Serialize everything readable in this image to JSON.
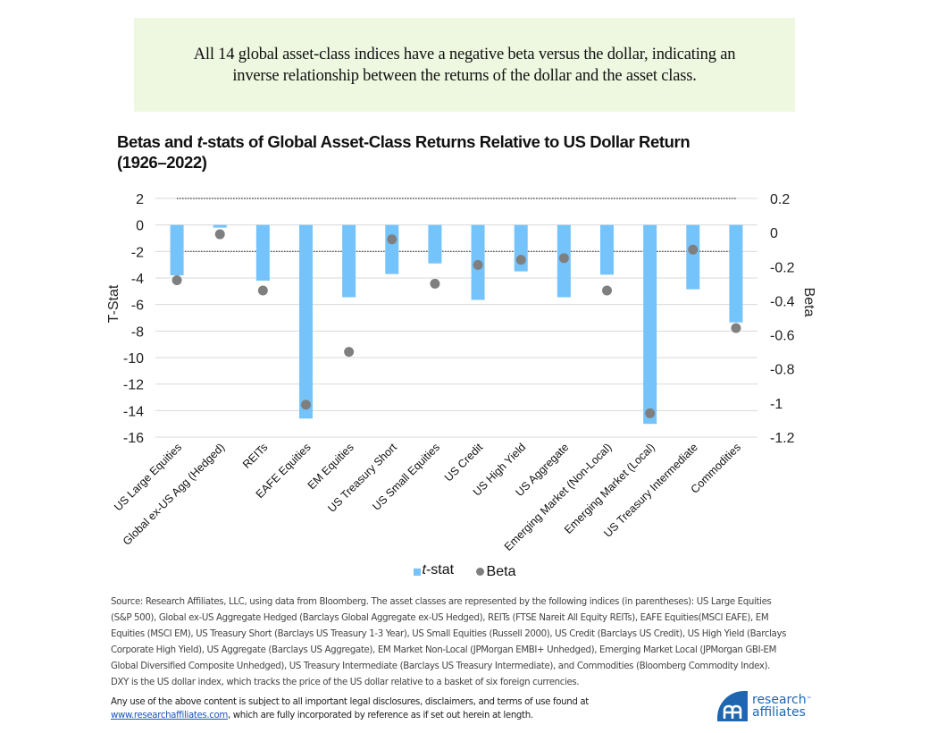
{
  "banner": {
    "line1": "All 14 global asset-class indices have a negative beta versus the dollar, indicating an",
    "line2": "inverse relationship between the returns of the dollar and the asset class."
  },
  "chart_data": {
    "type": "bar",
    "title_part1": "Betas and ",
    "title_italic": "t",
    "title_part2": "-stats of Global Asset-Class Returns Relative to US Dollar Return",
    "title_line2": "(1926–2022)",
    "categories": [
      "US Large Equities",
      "Global ex-US Agg (Hedged)",
      "REITs",
      "EAFE Equities",
      "EM Equities",
      "US Treasury Short",
      "US Small Equities",
      "US Credit",
      "US High Yield",
      "US Aggregate",
      "Emerging Market (Non-Local)",
      "Emerging Market (Local)",
      "US Treasury Intermediate",
      "Commodities"
    ],
    "series": [
      {
        "name": "t-stat",
        "type": "bar",
        "axis": "left",
        "color": "#75C3FB",
        "values": [
          -3.8,
          -0.2,
          -4.2,
          -14.6,
          -5.45,
          -3.7,
          -2.9,
          -5.65,
          -3.5,
          -5.45,
          -3.75,
          -15.0,
          -4.85,
          -7.35
        ]
      },
      {
        "name": "Beta",
        "type": "scatter",
        "axis": "right",
        "color": "#7F7F7F",
        "values": [
          -0.28,
          -0.01,
          -0.34,
          -1.01,
          -0.7,
          -0.04,
          -0.3,
          -0.19,
          -0.16,
          -0.15,
          -0.34,
          -1.06,
          -0.1,
          -0.56
        ]
      }
    ],
    "left_axis": {
      "label": "T-Stat",
      "ylim": [
        -16,
        2
      ],
      "ticks": [
        2,
        0,
        -2,
        -4,
        -6,
        -8,
        -10,
        -12,
        -14,
        -16
      ],
      "tick_labels": [
        "2",
        "0",
        "-2",
        "-4",
        "-6",
        "-8",
        "-10",
        "-12",
        "-14",
        "-16"
      ]
    },
    "right_axis": {
      "label": "Beta",
      "ylim": [
        -1.2,
        0.2
      ],
      "ticks": [
        0.2,
        0,
        -0.2,
        -0.4,
        -0.6,
        -0.8,
        -1,
        -1.2
      ],
      "tick_labels": [
        "0.2",
        "0",
        "-0.2",
        "-0.4",
        "-0.6",
        "-0.8",
        "-1",
        "-1.2"
      ]
    },
    "reference_lines": [
      {
        "axis": "left",
        "value": 2,
        "style": "dotted"
      },
      {
        "axis": "left",
        "value": -2,
        "style": "dotted"
      }
    ],
    "grid": true,
    "legend_position": "bottom",
    "legend": [
      {
        "italic": "t",
        "rest": "-stat",
        "marker": "square"
      },
      {
        "label": "Beta",
        "marker": "circle"
      }
    ]
  },
  "source_text": {
    "lines": [
      "Source: Research Affiliates, LLC, using data from Bloomberg. The asset classes are represented by the following indices (in parentheses): US Large Equities",
      "(S&P 500), Global ex-US Aggregate Hedged (Barclays Global Aggregate ex-US Hedged), REITs (FTSE Nareit All Equity REITs), EAFE Equities(MSCI EAFE), EM",
      "Equities (MSCI EM), US Treasury Short (Barclays US Treasury 1-3 Year), US Small Equities (Russell 2000), US Credit (Barclays US Credit), US High Yield (Barclays",
      "Corporate High Yield), US Aggregate (Barclays US Aggregate), EM Market Non-Local (JPMorgan EMBI+ Unhedged), Emerging Market Local (JPMorgan GBI-EM",
      "Global Diversified Composite Unhedged), US Treasury Intermediate (Barclays US Treasury Intermediate), and Commodities (Bloomberg Commodity Index).",
      "DXY is the US dollar index, which tracks the price of the US dollar relative to a basket of six foreign currencies."
    ]
  },
  "disclaimer": {
    "line1": "Any use of the above content is subject to all important legal disclosures, disclaimers, and terms of use found at",
    "link": "www.researchaffiliates.com",
    "line2_rest": ", which are fully incorporated by reference as if set out herein at length."
  },
  "logo": {
    "mark": "ꭤ",
    "word1": "research",
    "tm": "™",
    "word2": "affiliates",
    "color": "#1F66B1"
  }
}
